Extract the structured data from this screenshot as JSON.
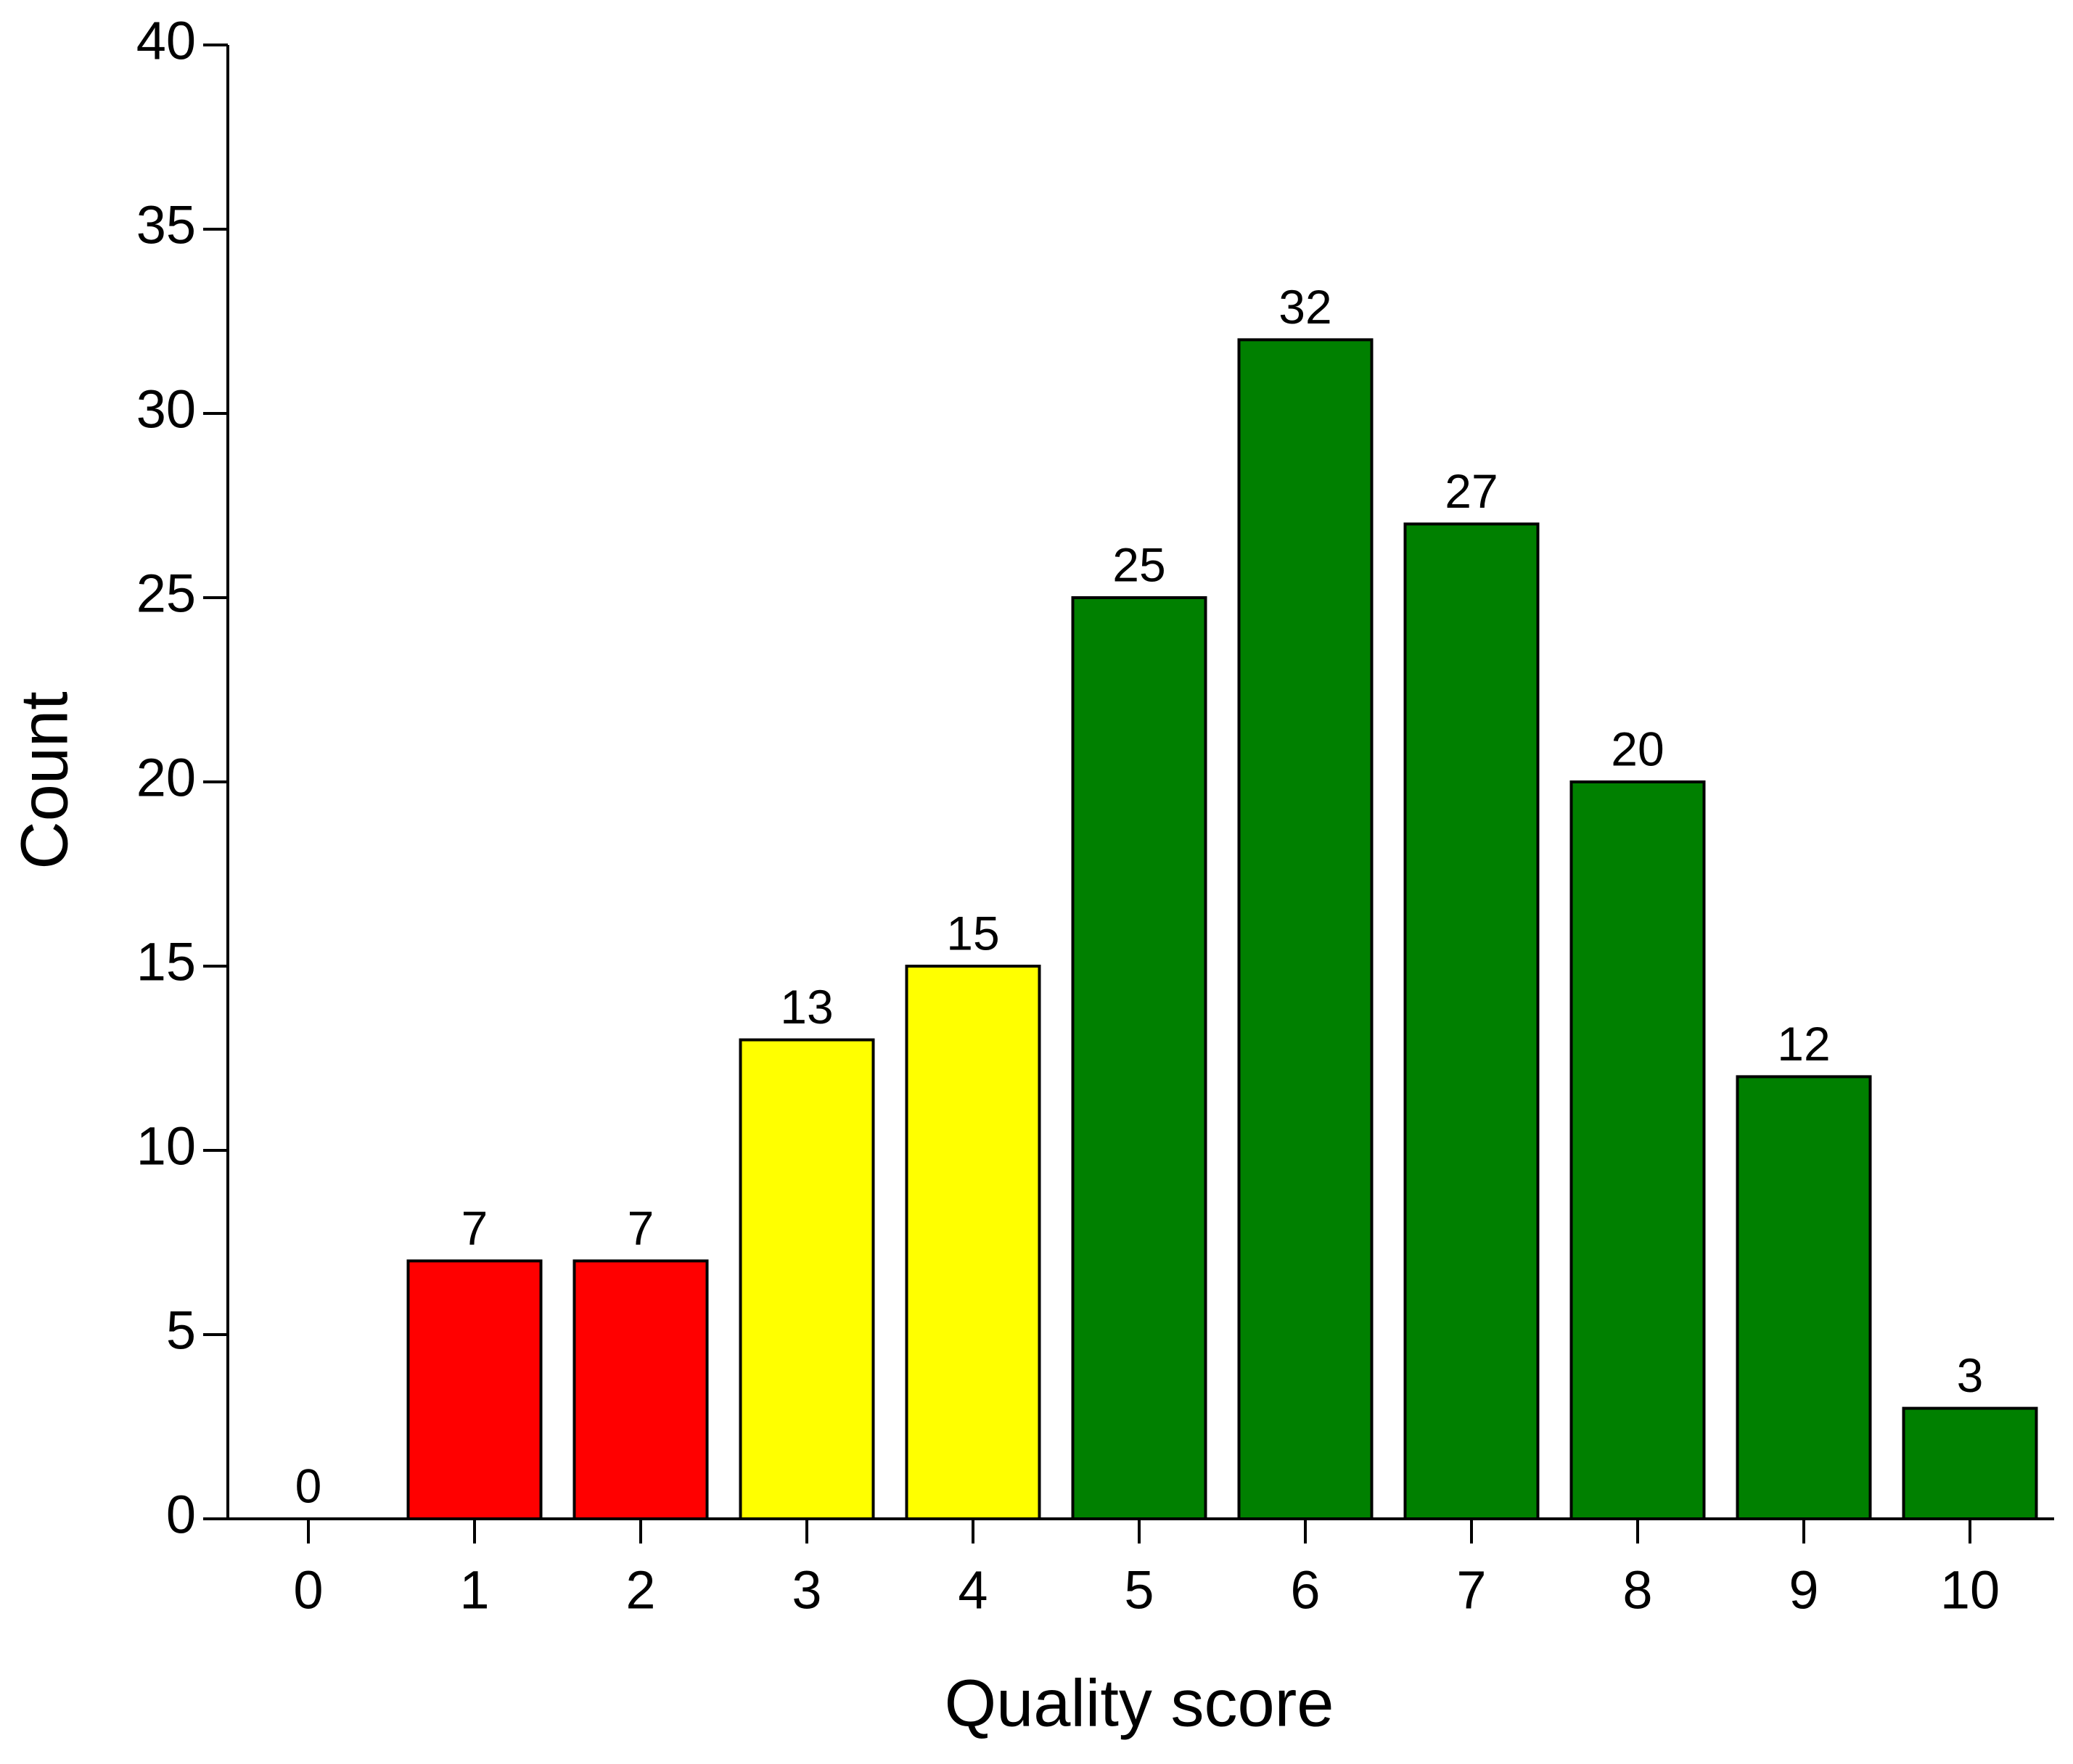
{
  "chart_data": {
    "type": "bar",
    "x_label": "Quality score",
    "y_label": "Count",
    "categories": [
      "0",
      "1",
      "2",
      "3",
      "4",
      "5",
      "6",
      "7",
      "8",
      "9",
      "10"
    ],
    "values": [
      0,
      7,
      7,
      13,
      15,
      25,
      32,
      27,
      20,
      12,
      3
    ],
    "colors": [
      "#008000",
      "#ff0000",
      "#ff0000",
      "#ffff00",
      "#ffff00",
      "#008000",
      "#008000",
      "#008000",
      "#008000",
      "#008000",
      "#008000"
    ],
    "ylim": [
      0,
      40
    ],
    "yticks": [
      0,
      5,
      10,
      15,
      20,
      25,
      30,
      35,
      40
    ],
    "grid": false
  }
}
